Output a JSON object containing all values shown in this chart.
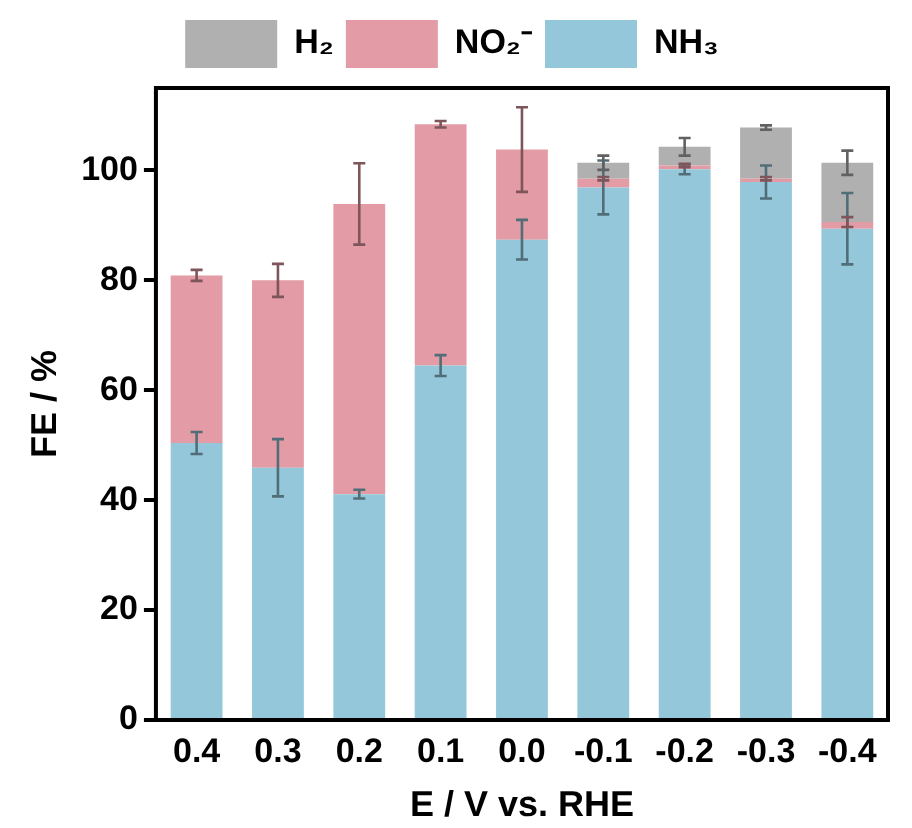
{
  "chart_data": {
    "type": "bar",
    "stacked": true,
    "xlabel": "E / V vs. RHE",
    "ylabel": "FE / %",
    "categories": [
      "0.4",
      "0.3",
      "0.2",
      "0.1",
      "0.0",
      "-0.1",
      "-0.2",
      "-0.3",
      "-0.4"
    ],
    "series": [
      {
        "name": "NH₃",
        "color": "#93c7d9",
        "values": [
          50.4,
          45.9,
          41.1,
          64.5,
          87.4,
          96.9,
          100.2,
          97.9,
          89.4
        ],
        "errors": [
          2,
          5.2,
          0.8,
          1.9,
          3.6,
          4.9,
          0.9,
          3,
          6.5
        ]
      },
      {
        "name": "NO₂⁻",
        "color": "#e39ba5",
        "values": [
          30.5,
          34.1,
          52.8,
          43.9,
          16.4,
          1.6,
          0.7,
          0.6,
          1.2
        ],
        "errors": [
          1,
          3,
          7.4,
          0.6,
          7.7,
          0.3,
          0.3,
          0.3,
          0.9
        ]
      },
      {
        "name": "H₂",
        "color": "#b0b0b0",
        "values": [
          null,
          null,
          null,
          null,
          null,
          2.9,
          3.4,
          9.3,
          10.8
        ],
        "errors": [
          null,
          null,
          null,
          null,
          null,
          1.3,
          1.6,
          0.4,
          2.2
        ]
      }
    ],
    "ylim": [
      0,
      115
    ],
    "yticks": [
      0,
      20,
      40,
      60,
      80,
      100
    ],
    "legend": "top"
  }
}
